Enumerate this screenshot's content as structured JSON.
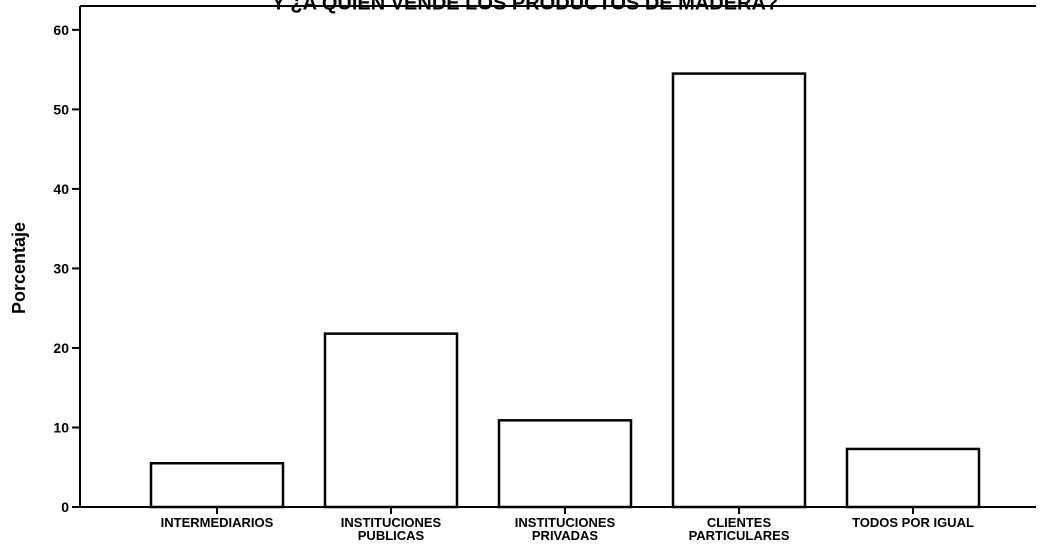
{
  "chart_data": {
    "type": "bar",
    "title": "Y ¿A QUIEN VENDE LOS PRODUCTOS DE MADERA?",
    "xlabel": "",
    "ylabel": "Porcentaje",
    "categories": [
      "INTERMEDIARIOS",
      "INSTITUCIONES PUBLICAS",
      "INSTITUCIONES PRIVADAS",
      "CLIENTES PARTICULARES",
      "TODOS POR IGUAL"
    ],
    "category_lines": [
      [
        "INTERMEDIARIOS"
      ],
      [
        "INSTITUCIONES",
        "PUBLICAS"
      ],
      [
        "INSTITUCIONES",
        "PRIVADAS"
      ],
      [
        "CLIENTES",
        "PARTICULARES"
      ],
      [
        "TODOS POR IGUAL"
      ]
    ],
    "values": [
      5.5,
      21.8,
      10.9,
      54.5,
      7.3
    ],
    "ylim": [
      0,
      63
    ],
    "yticks": [
      0,
      10,
      20,
      30,
      40,
      50,
      60
    ],
    "grid": false,
    "legend": "none",
    "colors": {
      "bar_fill": "#ffffff",
      "bar_stroke": "#000000",
      "axis": "#000000",
      "text": "#000000"
    }
  }
}
